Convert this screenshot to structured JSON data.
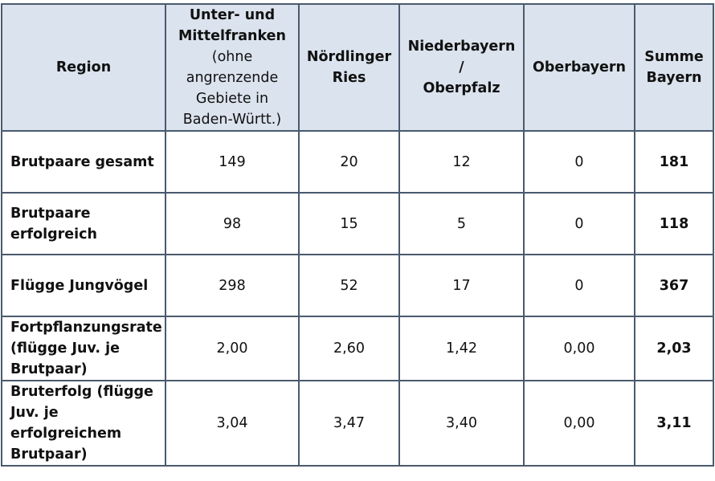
{
  "header": {
    "region": "Region",
    "col1_bold": "Unter- und Mittelfranken",
    "col1_sub": "(ohne angrenzende Gebiete in Baden-Württ.)",
    "col2": "Nördlinger Ries",
    "col3_a": "Niederbayern",
    "col3_b": "/",
    "col3_c": "Oberpfalz",
    "col4": "Oberbayern",
    "col5": "Summe Bayern"
  },
  "rows": [
    {
      "label": "Brutpaare gesamt",
      "values": [
        "149",
        "20",
        "12",
        "0"
      ],
      "sum": "181"
    },
    {
      "label": "Brutpaare erfolgreich",
      "values": [
        "98",
        "15",
        "5",
        "0"
      ],
      "sum": "118"
    },
    {
      "label": "Flügge Jungvögel",
      "values": [
        "298",
        "52",
        "17",
        "0"
      ],
      "sum": "367"
    },
    {
      "label": "Fortpflanzungsrate (flügge Juv. je Brutpaar)",
      "values": [
        "2,00",
        "2,60",
        "1,42",
        "0,00"
      ],
      "sum": "2,03"
    },
    {
      "label": "Bruterfolg (flügge Juv. je erfolgreichem Brutpaar)",
      "values": [
        "3,04",
        "3,47",
        "3,40",
        "0,00"
      ],
      "sum": "3,11"
    }
  ],
  "colors": {
    "header_bg": "#dbe3ee",
    "border": "#4a5a6e"
  }
}
